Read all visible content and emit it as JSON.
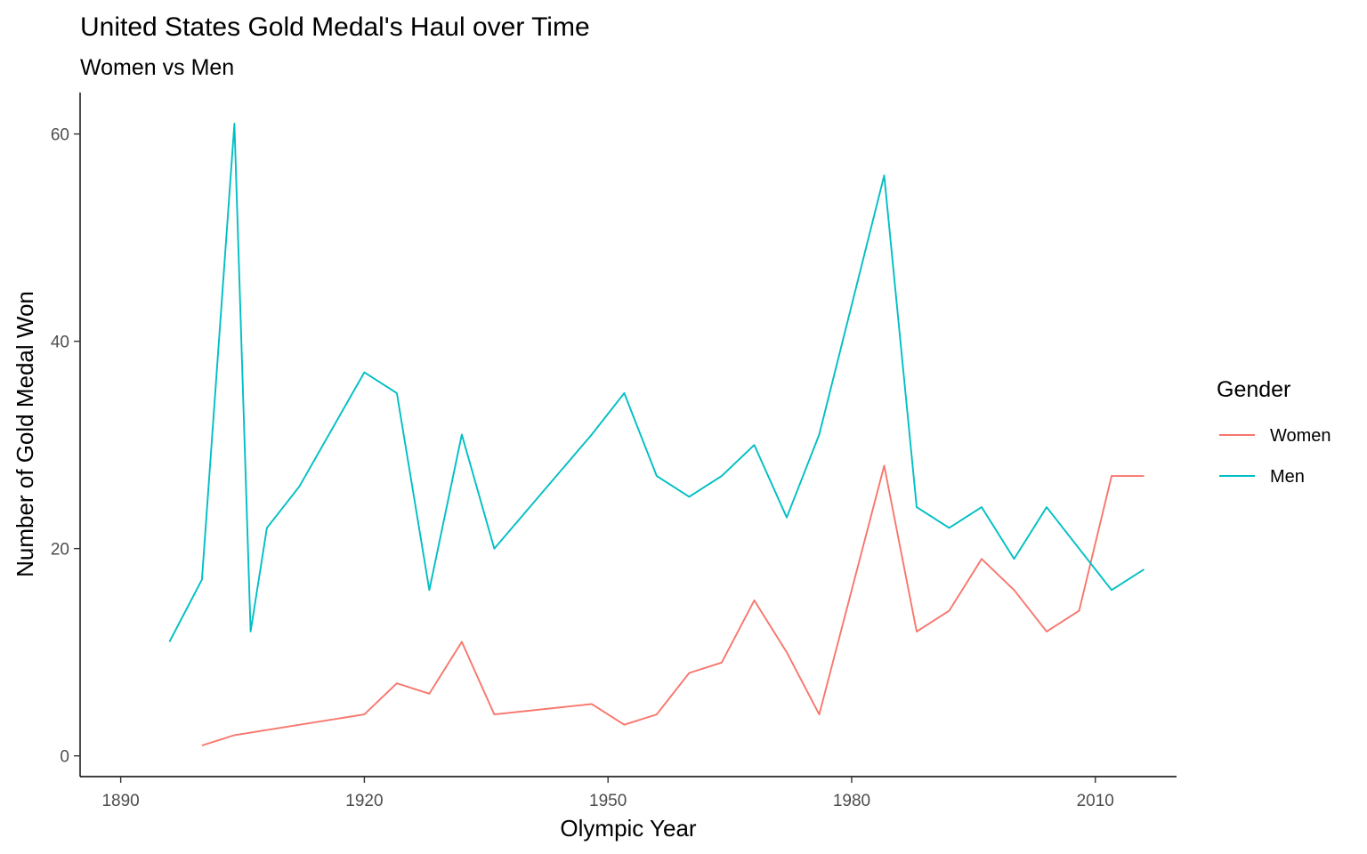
{
  "chart_data": {
    "type": "line",
    "title": "United States Gold Medal's Haul over Time",
    "subtitle": "Women vs Men",
    "xlabel": "Olympic Year",
    "ylabel": "Number of Gold Medal Won",
    "xlim": [
      1885,
      2020
    ],
    "ylim": [
      -2,
      64
    ],
    "x_ticks": [
      1890,
      1920,
      1950,
      1980,
      2010
    ],
    "y_ticks": [
      0,
      20,
      40,
      60
    ],
    "grid": false,
    "legend": {
      "title": "Gender",
      "position": "right"
    },
    "series": [
      {
        "name": "Women",
        "color": "#F8766D",
        "x": [
          1900,
          1904,
          1920,
          1924,
          1928,
          1932,
          1936,
          1948,
          1952,
          1956,
          1960,
          1964,
          1968,
          1972,
          1976,
          1984,
          1988,
          1992,
          1996,
          2000,
          2004,
          2008,
          2012,
          2016
        ],
        "y": [
          1,
          2,
          4,
          7,
          6,
          11,
          4,
          5,
          3,
          4,
          8,
          9,
          15,
          10,
          4,
          28,
          12,
          14,
          19,
          16,
          12,
          14,
          27,
          27
        ]
      },
      {
        "name": "Men",
        "color": "#00BFC4",
        "x": [
          1896,
          1900,
          1904,
          1906,
          1908,
          1912,
          1920,
          1924,
          1928,
          1932,
          1936,
          1948,
          1952,
          1956,
          1960,
          1964,
          1968,
          1972,
          1976,
          1984,
          1988,
          1992,
          1996,
          2000,
          2004,
          2012,
          2016
        ],
        "y": [
          11,
          17,
          61,
          12,
          22,
          26,
          37,
          35,
          16,
          31,
          20,
          31,
          35,
          27,
          25,
          27,
          30,
          23,
          31,
          56,
          24,
          22,
          24,
          19,
          24,
          16,
          18
        ]
      }
    ]
  }
}
